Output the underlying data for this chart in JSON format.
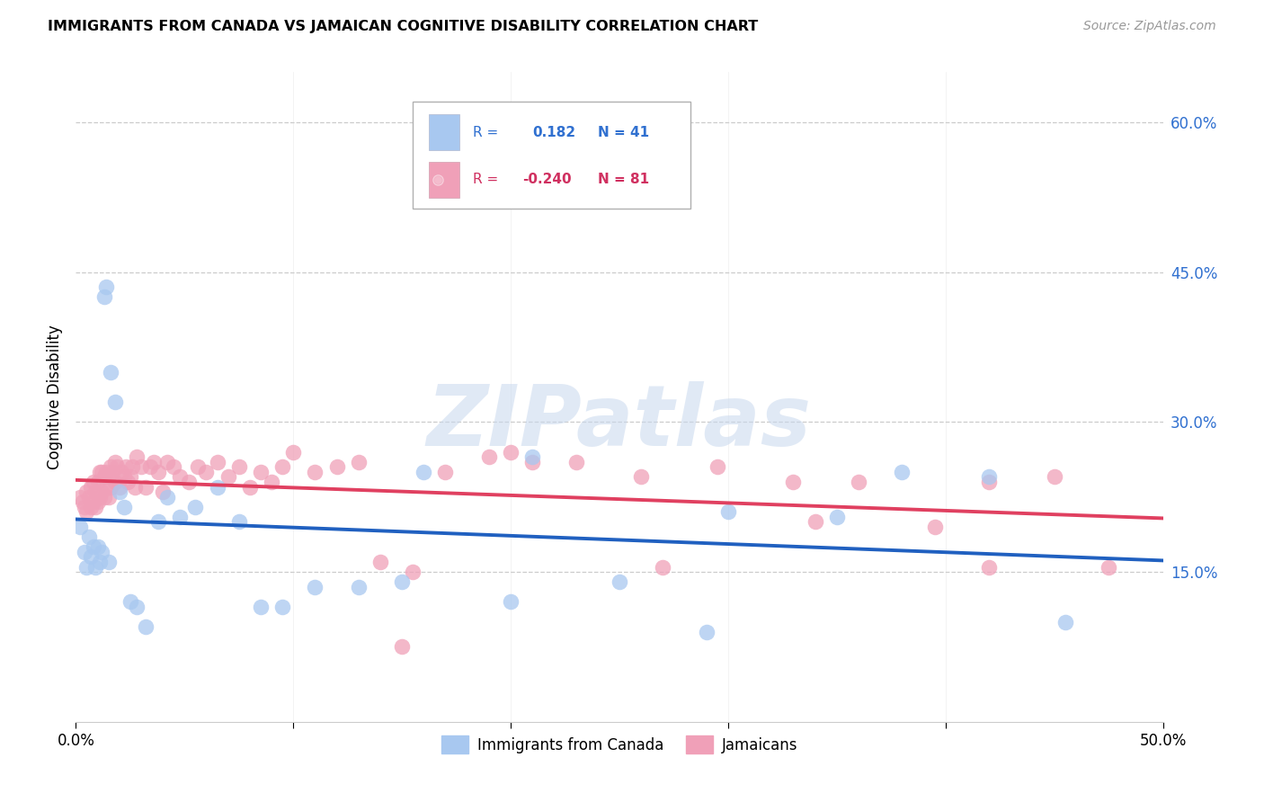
{
  "title": "IMMIGRANTS FROM CANADA VS JAMAICAN COGNITIVE DISABILITY CORRELATION CHART",
  "source": "Source: ZipAtlas.com",
  "ylabel": "Cognitive Disability",
  "legend_label1": "Immigrants from Canada",
  "legend_label2": "Jamaicans",
  "R1": 0.182,
  "N1": 41,
  "R2": -0.24,
  "N2": 81,
  "color_blue": "#a8c8f0",
  "color_pink": "#f0a0b8",
  "color_blue_line": "#2060c0",
  "color_pink_line": "#e04060",
  "color_blue_text": "#3070d0",
  "color_pink_text": "#d03060",
  "watermark": "ZIPatlas",
  "xlim": [
    0.0,
    0.5
  ],
  "ylim": [
    0.0,
    0.65
  ],
  "right_ytick_vals": [
    0.6,
    0.45,
    0.3,
    0.15
  ],
  "right_yticks": [
    "60.0%",
    "45.0%",
    "30.0%",
    "15.0%"
  ],
  "blue_x": [
    0.002,
    0.004,
    0.005,
    0.006,
    0.007,
    0.008,
    0.009,
    0.01,
    0.011,
    0.012,
    0.013,
    0.014,
    0.015,
    0.016,
    0.018,
    0.02,
    0.022,
    0.025,
    0.028,
    0.032,
    0.038,
    0.042,
    0.048,
    0.055,
    0.065,
    0.075,
    0.085,
    0.095,
    0.11,
    0.13,
    0.15,
    0.2,
    0.25,
    0.3,
    0.35,
    0.38,
    0.42,
    0.455,
    0.16,
    0.21,
    0.29
  ],
  "blue_y": [
    0.195,
    0.17,
    0.155,
    0.185,
    0.165,
    0.175,
    0.155,
    0.175,
    0.16,
    0.17,
    0.425,
    0.435,
    0.16,
    0.35,
    0.32,
    0.23,
    0.215,
    0.12,
    0.115,
    0.095,
    0.2,
    0.225,
    0.205,
    0.215,
    0.235,
    0.2,
    0.115,
    0.115,
    0.135,
    0.135,
    0.14,
    0.12,
    0.14,
    0.21,
    0.205,
    0.25,
    0.245,
    0.1,
    0.25,
    0.265,
    0.09
  ],
  "pink_x": [
    0.002,
    0.003,
    0.004,
    0.005,
    0.005,
    0.006,
    0.007,
    0.007,
    0.008,
    0.008,
    0.009,
    0.009,
    0.01,
    0.01,
    0.011,
    0.011,
    0.012,
    0.012,
    0.013,
    0.013,
    0.014,
    0.014,
    0.015,
    0.015,
    0.016,
    0.016,
    0.017,
    0.018,
    0.018,
    0.019,
    0.02,
    0.021,
    0.022,
    0.023,
    0.024,
    0.025,
    0.026,
    0.027,
    0.028,
    0.03,
    0.032,
    0.034,
    0.036,
    0.038,
    0.04,
    0.042,
    0.045,
    0.048,
    0.052,
    0.056,
    0.06,
    0.065,
    0.07,
    0.075,
    0.08,
    0.085,
    0.09,
    0.095,
    0.1,
    0.11,
    0.12,
    0.13,
    0.14,
    0.155,
    0.17,
    0.19,
    0.21,
    0.23,
    0.26,
    0.295,
    0.33,
    0.36,
    0.395,
    0.42,
    0.45,
    0.475,
    0.15,
    0.2,
    0.27,
    0.34,
    0.42
  ],
  "pink_y": [
    0.225,
    0.22,
    0.215,
    0.23,
    0.21,
    0.225,
    0.235,
    0.215,
    0.24,
    0.22,
    0.23,
    0.215,
    0.24,
    0.22,
    0.25,
    0.225,
    0.25,
    0.23,
    0.245,
    0.225,
    0.25,
    0.235,
    0.245,
    0.225,
    0.255,
    0.235,
    0.25,
    0.26,
    0.24,
    0.255,
    0.235,
    0.25,
    0.245,
    0.255,
    0.24,
    0.245,
    0.255,
    0.235,
    0.265,
    0.255,
    0.235,
    0.255,
    0.26,
    0.25,
    0.23,
    0.26,
    0.255,
    0.245,
    0.24,
    0.255,
    0.25,
    0.26,
    0.245,
    0.255,
    0.235,
    0.25,
    0.24,
    0.255,
    0.27,
    0.25,
    0.255,
    0.26,
    0.16,
    0.15,
    0.25,
    0.265,
    0.26,
    0.26,
    0.245,
    0.255,
    0.24,
    0.24,
    0.195,
    0.24,
    0.245,
    0.155,
    0.075,
    0.27,
    0.155,
    0.2,
    0.155
  ]
}
